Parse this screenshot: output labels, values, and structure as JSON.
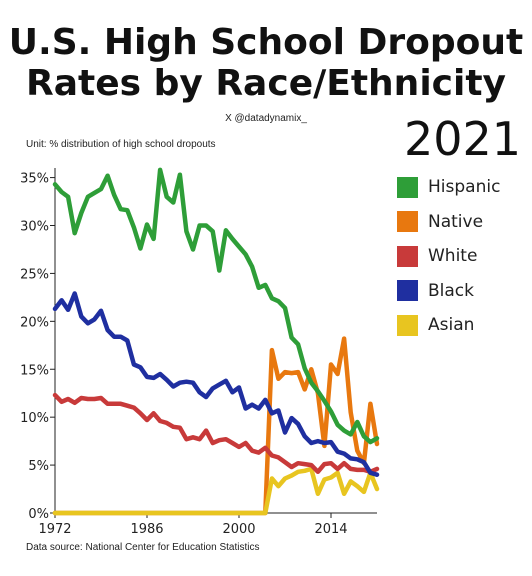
{
  "header": {
    "title_line1": "U.S. High School Dropout",
    "title_line2": "Rates by Race/Ethnicity",
    "handle": "X @datadynamix_",
    "year": "2021",
    "unit": "Unit: % distribution of high school dropouts",
    "source": "Data source: National Center for Education Statistics"
  },
  "chart_data": {
    "type": "line",
    "title": "U.S. High School Dropout Rates by Race/Ethnicity",
    "xlabel": "",
    "ylabel": "",
    "xlim": [
      1972,
      2021
    ],
    "ylim": [
      0,
      36
    ],
    "xticks": [
      1972,
      1986,
      2000,
      2014
    ],
    "xtick_labels": [
      "1972",
      "1986",
      "2000",
      "2014"
    ],
    "yticks": [
      0,
      5,
      10,
      15,
      20,
      25,
      30,
      35
    ],
    "ytick_labels": [
      "0%",
      "5%",
      "10%",
      "15%",
      "20%",
      "25%",
      "30%",
      "35%"
    ],
    "grid": false,
    "legend_position": "right",
    "x": [
      1972,
      1973,
      1974,
      1975,
      1976,
      1977,
      1978,
      1979,
      1980,
      1981,
      1982,
      1983,
      1984,
      1985,
      1986,
      1987,
      1988,
      1989,
      1990,
      1991,
      1992,
      1993,
      1994,
      1995,
      1996,
      1997,
      1998,
      1999,
      2000,
      2001,
      2002,
      2003,
      2004,
      2005,
      2006,
      2007,
      2008,
      2009,
      2010,
      2011,
      2012,
      2013,
      2014,
      2015,
      2016,
      2017,
      2018,
      2019,
      2020,
      2021
    ],
    "series": [
      {
        "name": "Hispanic",
        "color": "#2e9e38",
        "values": [
          34.3,
          33.5,
          33.0,
          29.2,
          31.3,
          33.0,
          33.4,
          33.8,
          35.2,
          33.2,
          31.7,
          31.6,
          29.8,
          27.6,
          30.1,
          28.6,
          35.8,
          33.0,
          32.4,
          35.3,
          29.4,
          27.5,
          30.0,
          30.0,
          29.4,
          25.3,
          29.5,
          28.6,
          27.8,
          27.0,
          25.7,
          23.5,
          23.8,
          22.4,
          22.1,
          21.4,
          18.3,
          17.6,
          15.1,
          13.6,
          12.7,
          11.7,
          10.6,
          9.2,
          8.6,
          8.2,
          9.5,
          8.0,
          7.4,
          7.8
        ]
      },
      {
        "name": "Native",
        "color": "#e8780f",
        "values": [
          0,
          0,
          0,
          0,
          0,
          0,
          0,
          0,
          0,
          0,
          0,
          0,
          0,
          0,
          0,
          0,
          0,
          0,
          0,
          0,
          0,
          0,
          0,
          0,
          0,
          0,
          0,
          0,
          0,
          0,
          0,
          0,
          0,
          17.0,
          14.0,
          14.7,
          14.6,
          14.7,
          12.9,
          15.0,
          12.5,
          7.0,
          15.5,
          14.5,
          18.2,
          10.5,
          6.5,
          5.2,
          11.4,
          7.2
        ]
      },
      {
        "name": "White",
        "color": "#c83a3a",
        "values": [
          12.3,
          11.6,
          11.9,
          11.5,
          12.0,
          11.9,
          11.9,
          12.0,
          11.4,
          11.4,
          11.4,
          11.2,
          11.0,
          10.4,
          9.7,
          10.4,
          9.6,
          9.4,
          9.0,
          8.9,
          7.7,
          7.9,
          7.7,
          8.6,
          7.3,
          7.6,
          7.7,
          7.3,
          6.9,
          7.3,
          6.5,
          6.3,
          6.8,
          6.0,
          5.8,
          5.3,
          4.8,
          5.2,
          5.1,
          5.0,
          4.3,
          5.1,
          5.2,
          4.6,
          5.2,
          4.6,
          4.5,
          4.5,
          4.3,
          4.6
        ]
      },
      {
        "name": "Black",
        "color": "#1f2fa0",
        "values": [
          21.3,
          22.2,
          21.2,
          22.9,
          20.5,
          19.8,
          20.2,
          21.1,
          19.1,
          18.4,
          18.4,
          18.0,
          15.5,
          15.2,
          14.2,
          14.1,
          14.5,
          13.9,
          13.2,
          13.6,
          13.7,
          13.6,
          12.6,
          12.1,
          13.0,
          13.4,
          13.8,
          12.6,
          13.1,
          10.9,
          11.3,
          10.9,
          11.8,
          10.4,
          10.7,
          8.4,
          9.9,
          9.3,
          8.0,
          7.3,
          7.5,
          7.3,
          7.4,
          6.4,
          6.2,
          5.7,
          5.6,
          5.3,
          4.2,
          4.0
        ]
      },
      {
        "name": "Asian",
        "color": "#e8c520",
        "values": [
          0,
          0,
          0,
          0,
          0,
          0,
          0,
          0,
          0,
          0,
          0,
          0,
          0,
          0,
          0,
          0,
          0,
          0,
          0,
          0,
          0,
          0,
          0,
          0,
          0,
          0,
          0,
          0,
          0,
          0,
          0,
          0,
          0,
          3.6,
          2.8,
          3.6,
          3.9,
          4.3,
          4.4,
          4.6,
          2.0,
          3.5,
          3.7,
          4.2,
          2.0,
          3.3,
          2.8,
          2.2,
          4.2,
          2.5
        ]
      }
    ]
  }
}
